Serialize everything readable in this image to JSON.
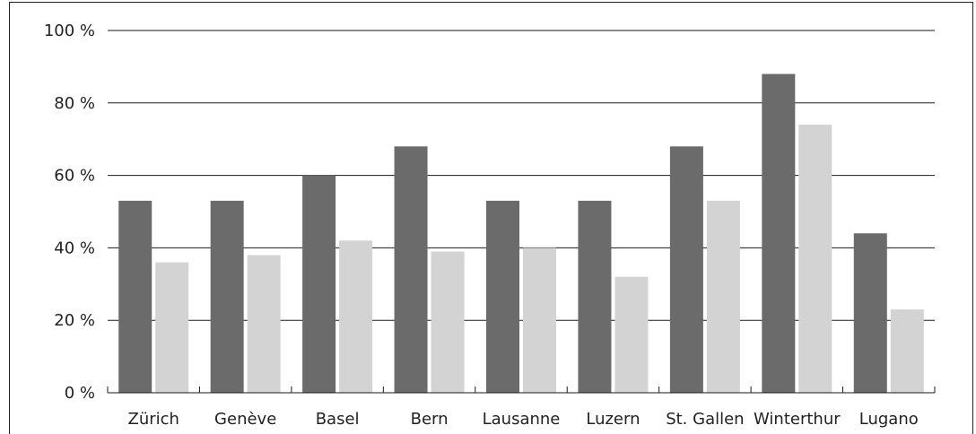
{
  "chart_data": {
    "type": "bar",
    "title": "",
    "xlabel": "",
    "ylabel": "",
    "ylim": [
      0,
      100
    ],
    "yticks": [
      "0 %",
      "20 %",
      "40 %",
      "60 %",
      "80 %",
      "100 %"
    ],
    "yticks_values": [
      0,
      20,
      40,
      60,
      80,
      100
    ],
    "grid": true,
    "categories": [
      "Zürich",
      "Genève",
      "Basel",
      "Bern",
      "Lausanne",
      "Luzern",
      "St. Gallen",
      "Winterthur",
      "Lugano"
    ],
    "series": [
      {
        "values": [
          53,
          53,
          60,
          68,
          53,
          53,
          68,
          88,
          44
        ]
      },
      {
        "values": [
          36,
          38,
          42,
          39,
          40,
          32,
          53,
          74,
          23
        ]
      }
    ],
    "colors": [
      "#6b6b6b",
      "#d3d3d3",
      "#1a1a1a"
    ]
  }
}
